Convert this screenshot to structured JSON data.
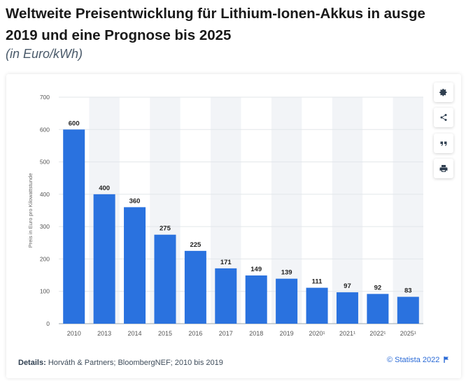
{
  "header": {
    "title_line1": "Weltweite Preisentwicklung für Lithium-Ionen-Akkus in ausge",
    "title_line2": "2019 und eine Prognose bis 2025",
    "subtitle": "(in Euro/kWh)"
  },
  "toolbar": {
    "settings_icon": "gear-icon",
    "share_icon": "share-icon",
    "cite_icon": "quote-icon",
    "print_icon": "print-icon"
  },
  "footer": {
    "details_label": "Details:",
    "details_text": "Horváth & Partners; BloombergNEF; 2010 bis 2019",
    "copyright": "© Statista 2022",
    "flag_icon": "flag-icon"
  },
  "colors": {
    "bar": "#2a72df",
    "accent": "#2a6ad6",
    "band": "#f2f4f7"
  },
  "chart_data": {
    "type": "bar",
    "categories": [
      "2010",
      "2013",
      "2014",
      "2015",
      "2016",
      "2017",
      "2018",
      "2019",
      "2020¹",
      "2021¹",
      "2022¹",
      "2025¹"
    ],
    "values": [
      600,
      400,
      360,
      275,
      225,
      171,
      149,
      139,
      111,
      97,
      92,
      83
    ],
    "title": "",
    "xlabel": "",
    "ylabel": "Preis in Euro pro Kilowattstunde",
    "ylim": [
      0,
      700
    ],
    "yticks": [
      0,
      100,
      200,
      300,
      400,
      500,
      600,
      700
    ],
    "grid": true
  }
}
